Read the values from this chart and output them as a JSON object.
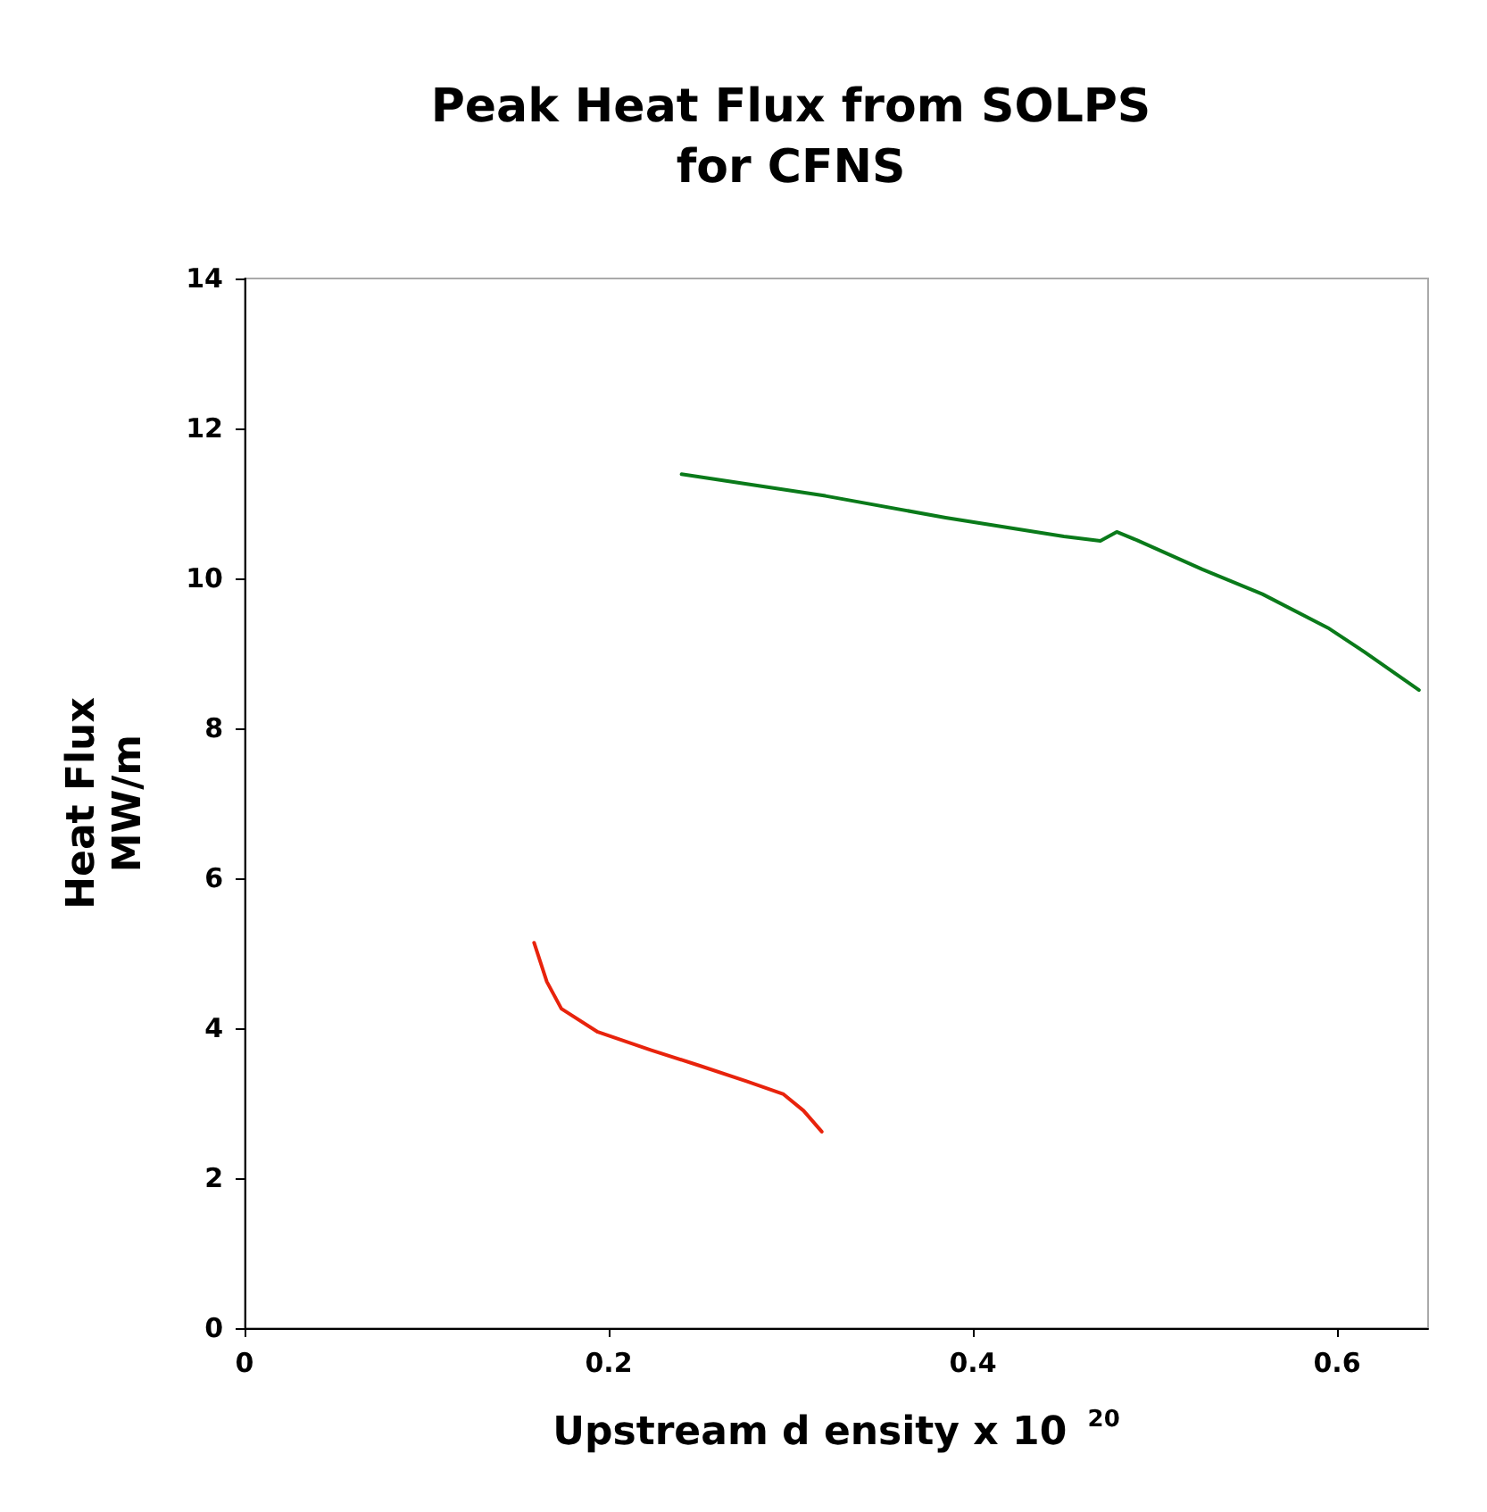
{
  "chart_data": {
    "type": "line",
    "title": "Peak Heat Flux from SOLPS\nfor CFNS",
    "xlabel": "Upstream d ensity x 10 $^{20}$",
    "ylabel": "Heat Flux\nMW/m",
    "xlim": [
      0,
      0.65
    ],
    "xticks": [
      0,
      0.2,
      0.4,
      0.6
    ],
    "ylim": [
      0,
      14
    ],
    "yticks": [
      0,
      2,
      4,
      6,
      8,
      10,
      12,
      14
    ],
    "grid": false,
    "marker": "none",
    "line_style": "solid",
    "series": [
      {
        "color": "#0a7a1a",
        "x": [
          0.24,
          0.319,
          0.385,
          0.45,
          0.47,
          0.479,
          0.49,
          0.526,
          0.559,
          0.595,
          0.615,
          0.645
        ],
        "values": [
          11.39,
          11.1,
          10.81,
          10.56,
          10.5,
          10.62,
          10.51,
          10.12,
          9.79,
          9.34,
          9.02,
          8.51
        ]
      },
      {
        "color": "#e8230c",
        "x": [
          0.159,
          0.166,
          0.174,
          0.194,
          0.223,
          0.25,
          0.276,
          0.296,
          0.307,
          0.317
        ],
        "values": [
          5.14,
          4.62,
          4.26,
          3.95,
          3.71,
          3.5,
          3.29,
          3.12,
          2.9,
          2.62
        ]
      }
    ]
  }
}
